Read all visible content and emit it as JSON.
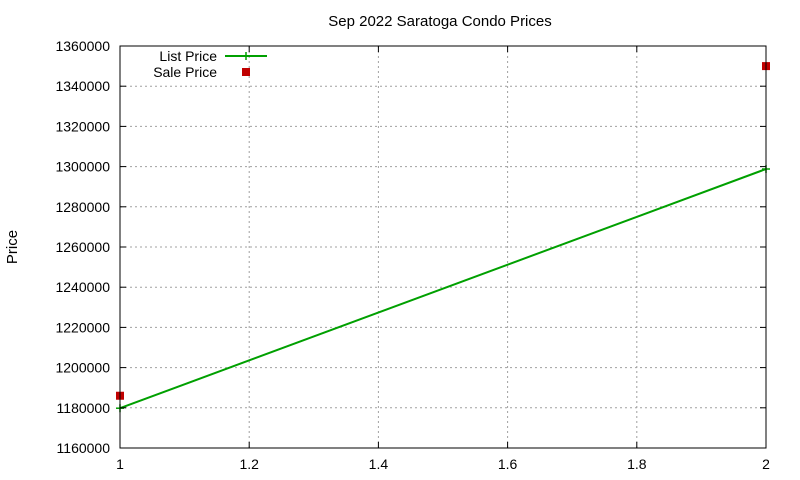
{
  "chart_data": {
    "type": "line",
    "title": "Sep 2022 Saratoga Condo Prices",
    "xlabel": "",
    "ylabel": "Price",
    "xlim": [
      1,
      2
    ],
    "ylim": [
      1160000,
      1360000
    ],
    "x_ticks": [
      "1",
      "1.2",
      "1.4",
      "1.6",
      "1.8",
      "2"
    ],
    "x_tick_values": [
      1,
      1.2,
      1.4,
      1.6,
      1.8,
      2
    ],
    "y_ticks": [
      "1160000",
      "1180000",
      "1200000",
      "1220000",
      "1240000",
      "1260000",
      "1280000",
      "1300000",
      "1320000",
      "1340000",
      "1360000"
    ],
    "y_tick_values": [
      1160000,
      1180000,
      1200000,
      1220000,
      1240000,
      1260000,
      1280000,
      1300000,
      1320000,
      1340000,
      1360000
    ],
    "grid": true,
    "legend_position": "top-left",
    "series": [
      {
        "name": "List Price",
        "style": "line-with-plus-markers",
        "color": "#00a000",
        "points": [
          {
            "x": 1,
            "y": 1179800
          },
          {
            "x": 2,
            "y": 1298800
          }
        ]
      },
      {
        "name": "Sale Price",
        "style": "square-markers",
        "color": "#c00000",
        "points": [
          {
            "x": 1,
            "y": 1186000
          },
          {
            "x": 2,
            "y": 1350000
          }
        ]
      }
    ]
  }
}
